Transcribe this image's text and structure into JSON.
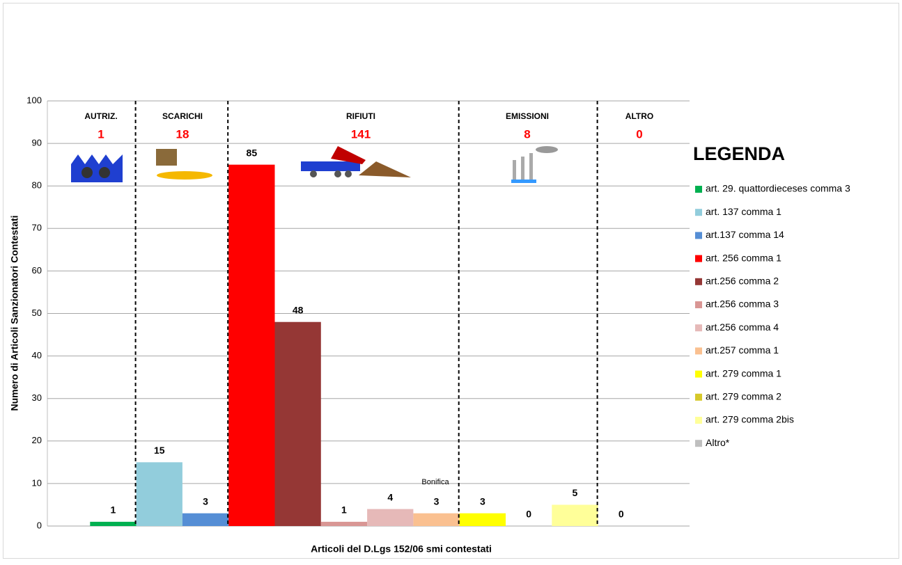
{
  "chart_data": {
    "type": "bar",
    "y_label": "Numero di Articoli  Sanzionatori Contestati",
    "x_label": "Articoli del D.Lgs 152/06 smi contestati",
    "legend_title": "LEGENDA",
    "categories": [
      "art. 29. quattordieceses comma 3",
      "art. 137 comma 1",
      "art.137 comma 14",
      "art. 256 comma 1",
      "art.256 comma 2",
      "art.256 comma 3",
      "art.256 comma 4",
      "art.257 comma 1",
      "art. 279 comma 1",
      "art. 279 comma 2",
      "art. 279 comma 2bis",
      "Altro*"
    ],
    "values": [
      1,
      15,
      3,
      85,
      48,
      1,
      4,
      3,
      3,
      0,
      5,
      0
    ],
    "colors": [
      "#00b050",
      "#92cddc",
      "#558ed5",
      "#ff0000",
      "#953735",
      "#d99694",
      "#e6b9b8",
      "#fac090",
      "#ffff00",
      "#d6c82a",
      "#ffff99",
      "#bfbfbf"
    ],
    "sections": [
      {
        "label": "AUTRIZ.",
        "total": 1
      },
      {
        "label": "SCARICHI",
        "total": 18
      },
      {
        "label": "RIFIUTI",
        "total": 141
      },
      {
        "label": "EMISSIONI",
        "total": 8
      },
      {
        "label": "ALTRO",
        "total": 0
      }
    ],
    "annotation": "Bonifica",
    "ylim": [
      0,
      100
    ],
    "yticks": [
      0,
      10,
      20,
      30,
      40,
      50,
      60,
      70,
      80,
      90,
      100
    ],
    "grid": true
  }
}
